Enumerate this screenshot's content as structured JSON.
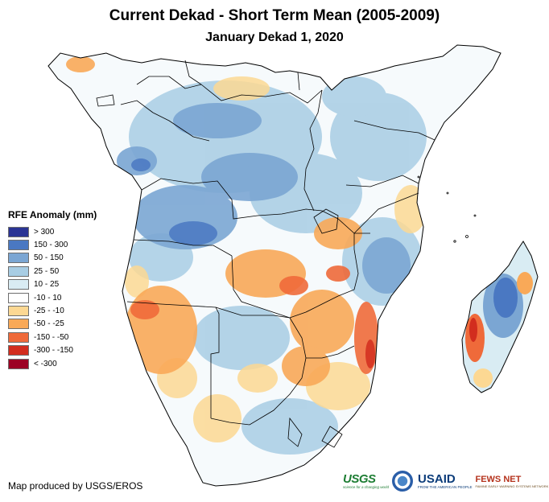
{
  "title": "Current Dekad - Short Term Mean (2005-2009)",
  "subtitle": "January Dekad 1, 2020",
  "legend": {
    "title": "RFE Anomaly (mm)",
    "items": [
      {
        "label": "> 300",
        "color": "#2b3494"
      },
      {
        "label": "150 - 300",
        "color": "#4a78c2"
      },
      {
        "label": "50 - 150",
        "color": "#7ba6d3"
      },
      {
        "label": "25 - 50",
        "color": "#a8cde4"
      },
      {
        "label": "10 - 25",
        "color": "#d9ecf3"
      },
      {
        "label": "-10 - 10",
        "color": "#ffffff"
      },
      {
        "label": "-25 - -10",
        "color": "#fcd893"
      },
      {
        "label": "-50 - -25",
        "color": "#f9a958"
      },
      {
        "label": "-150 - -50",
        "color": "#ef6a3a"
      },
      {
        "label": "-300 - -150",
        "color": "#d22d1e"
      },
      {
        "label": "< -300",
        "color": "#9c0224"
      }
    ]
  },
  "credit": "Map produced by USGS/EROS",
  "logos": {
    "usgs": "USGS",
    "usgs_tagline": "science for a changing world",
    "usaid": "USAID",
    "usaid_tagline": "FROM THE AMERICAN PEOPLE",
    "fews": "FEWS NET",
    "fews_tagline": "FAMINE EARLY WARNING SYSTEMS NETWORK"
  },
  "icons": [
    "noaa-seal-icon"
  ]
}
